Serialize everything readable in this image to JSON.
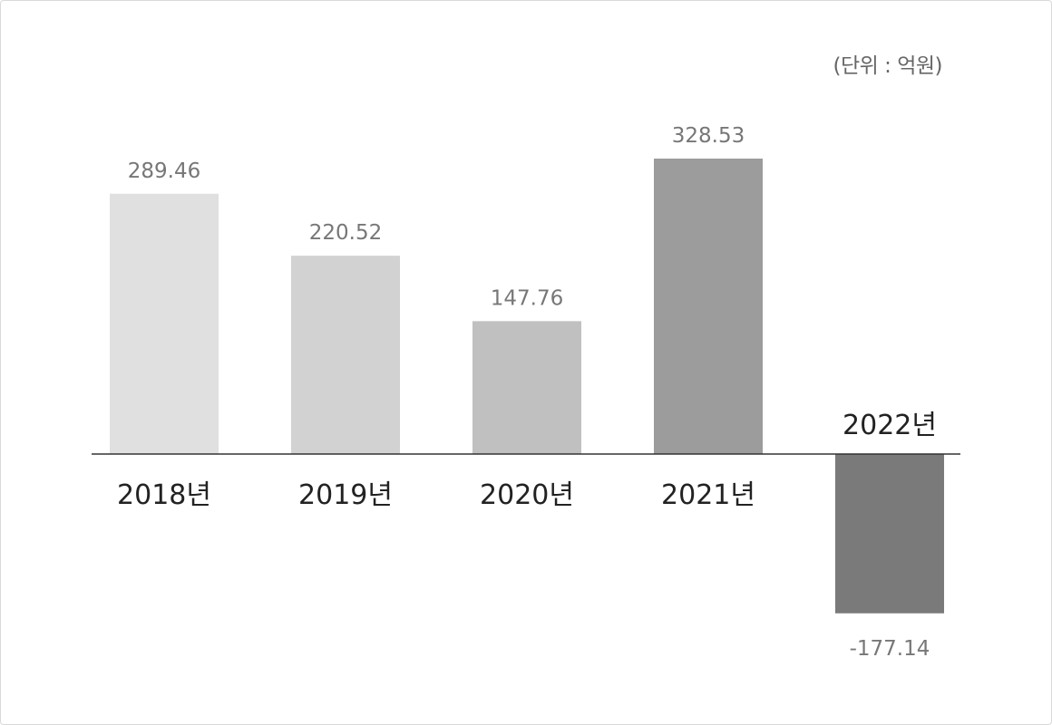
{
  "unit_label": "(단위 : 억원)",
  "chart_data": {
    "type": "bar",
    "title": "",
    "xlabel": "",
    "ylabel": "",
    "unit": "(단위 : 억원)",
    "categories": [
      "2018년",
      "2019년",
      "2020년",
      "2021년",
      "2022년"
    ],
    "values": [
      289.46,
      220.52,
      147.76,
      328.53,
      -177.14
    ],
    "value_labels": [
      "289.46",
      "220.52",
      "147.76",
      "328.53",
      "-177.14"
    ],
    "colors": [
      "#e0e0e0",
      "#d2d2d2",
      "#c0c0c0",
      "#9c9c9c",
      "#7a7a7a"
    ],
    "ylim": [
      -177.14,
      328.53
    ],
    "grid": false,
    "legend": "none"
  }
}
